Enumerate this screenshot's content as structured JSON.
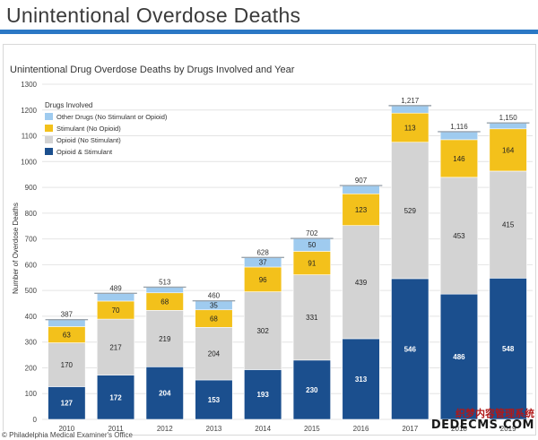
{
  "page": {
    "title": "Unintentional Overdose Deaths",
    "credit": "© Philadelphia Medical Examiner's Office",
    "watermark_line1": "织梦内容管理系统",
    "watermark_line2": "DEDECMS.COM"
  },
  "colors": {
    "accent_rule": "#2b78c5",
    "opioid_stimulant": "#1b4f8e",
    "opioid_no_stimulant": "#d3d3d3",
    "stimulant_no_opioid": "#f3c11b",
    "other_drugs": "#9fcbef",
    "grid": "#e4e4e4"
  },
  "chart_data": {
    "type": "bar",
    "stacked": true,
    "title": "Unintentional Drug Overdose Deaths by Drugs Involved and Year",
    "xlabel": "",
    "ylabel": "Number of Overdose Deaths",
    "ylim": [
      0,
      1300
    ],
    "yticks": [
      0,
      100,
      200,
      300,
      400,
      500,
      600,
      700,
      800,
      900,
      1000,
      1100,
      1200,
      1300
    ],
    "grid": true,
    "legend_title": "Drugs Involved",
    "legend_position": "top-left",
    "categories": [
      "2010",
      "2011",
      "2012",
      "2013",
      "2014",
      "2015",
      "2016",
      "2017",
      "2018",
      "2019"
    ],
    "series": [
      {
        "name": "Opioid & Stimulant",
        "color": "#1b4f8e",
        "values": [
          127,
          172,
          204,
          153,
          193,
          230,
          313,
          546,
          486,
          548
        ]
      },
      {
        "name": "Opioid (No Stimulant)",
        "color": "#d3d3d3",
        "values": [
          170,
          217,
          219,
          204,
          302,
          331,
          439,
          529,
          453,
          415
        ]
      },
      {
        "name": "Stimulant (No Opioid)",
        "color": "#f3c11b",
        "values": [
          63,
          70,
          68,
          68,
          96,
          91,
          123,
          113,
          146,
          164
        ]
      },
      {
        "name": "Other Drugs (No Stimulant or Opioid)",
        "color": "#9fcbef",
        "values": [
          27,
          30,
          22,
          35,
          37,
          50,
          32,
          29,
          31,
          23
        ]
      }
    ],
    "labeled_series": [
      true,
      true,
      true,
      false
    ],
    "labeled_other": [
      false,
      false,
      false,
      true,
      true,
      true,
      false,
      false,
      false,
      false
    ],
    "totals": [
      387,
      489,
      513,
      460,
      628,
      702,
      907,
      1217,
      1116,
      1150
    ],
    "legend_order": [
      3,
      2,
      1,
      0
    ]
  }
}
